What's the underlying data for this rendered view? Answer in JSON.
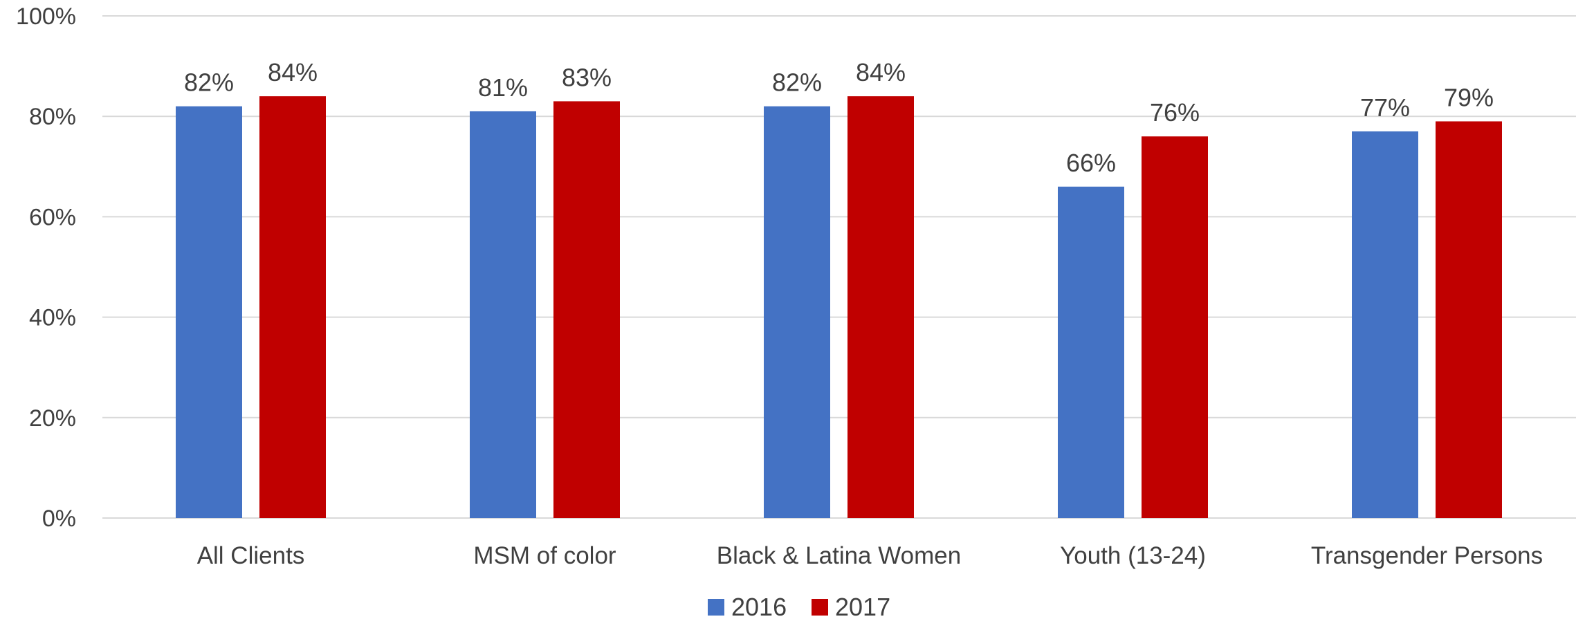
{
  "chart_data": {
    "type": "bar",
    "categories": [
      "All Clients",
      "MSM of color",
      "Black & Latina Women",
      "Youth (13-24)",
      "Transgender Persons"
    ],
    "series": [
      {
        "name": "2016",
        "color": "#4472c4",
        "values": [
          82,
          81,
          82,
          66,
          77
        ],
        "labels": [
          "82%",
          "81%",
          "82%",
          "66%",
          "77%"
        ]
      },
      {
        "name": "2017",
        "color": "#c00000",
        "values": [
          84,
          83,
          84,
          76,
          79
        ],
        "labels": [
          "84%",
          "83%",
          "84%",
          "76%",
          "79%"
        ]
      }
    ],
    "ylim": [
      0,
      100
    ],
    "yticks": [
      0,
      20,
      40,
      60,
      80,
      100
    ],
    "ytick_labels": [
      "0%",
      "20%",
      "40%",
      "60%",
      "80%",
      "100%"
    ],
    "title": "",
    "xlabel": "",
    "ylabel": "",
    "grid": true,
    "legend_position": "bottom"
  }
}
